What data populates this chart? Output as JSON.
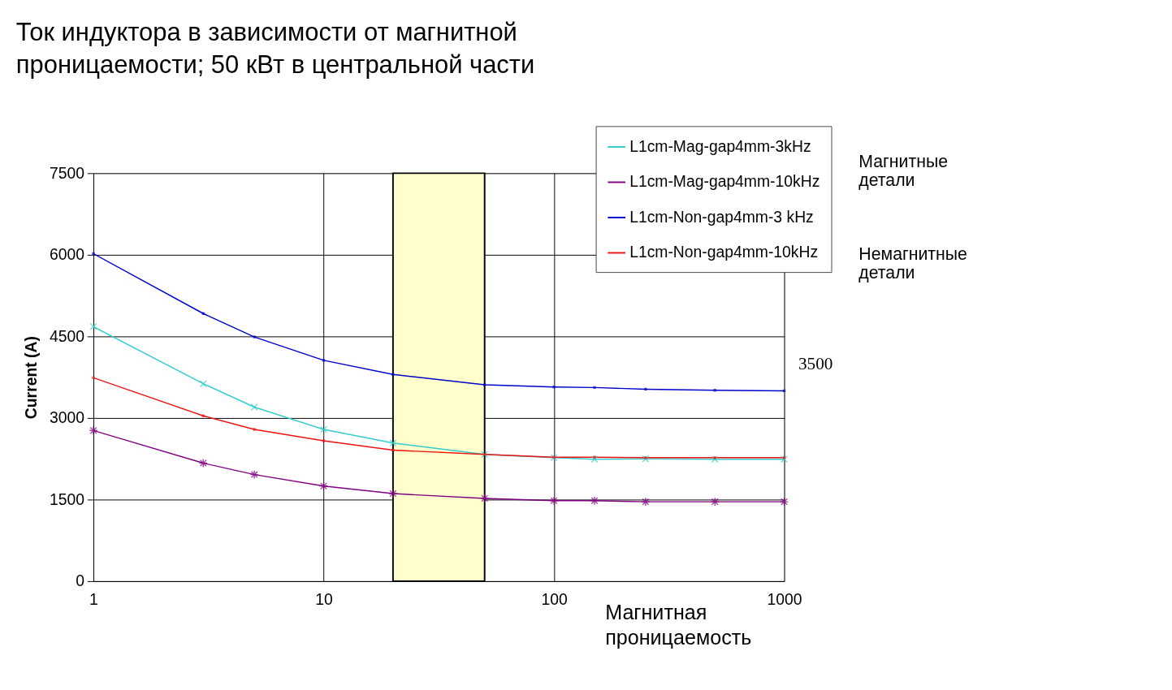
{
  "chart_data": {
    "type": "line",
    "title": "Ток индуктора в зависимости от магнитной проницаемости; 50 кВт в центральной части",
    "xlabel": "Магнитная проницаемость",
    "ylabel": "Current (A)",
    "x": [
      1,
      3,
      5,
      10,
      20,
      50,
      100,
      150,
      250,
      500,
      1000
    ],
    "series": [
      {
        "name": "L1cm-Mag-gap4mm-3kHz",
        "color": "#33cccc",
        "marker": "cross",
        "values": [
          4680,
          3630,
          3200,
          2790,
          2540,
          2330,
          2270,
          2240,
          2250,
          2240,
          2240
        ]
      },
      {
        "name": "L1cm-Mag-gap4mm-10kHz",
        "color": "#800080",
        "marker": "cross",
        "values": [
          2770,
          2170,
          1960,
          1750,
          1610,
          1520,
          1480,
          1480,
          1460,
          1460,
          1460
        ]
      },
      {
        "name": "L1cm-Non-gap4mm-3 kHz",
        "color": "#0000cc",
        "marker": "square",
        "values": [
          6020,
          4920,
          4490,
          4060,
          3800,
          3610,
          3570,
          3560,
          3530,
          3510,
          3500
        ]
      },
      {
        "name": "L1cm-Non-gap4mm-10kHz",
        "color": "#ee1111",
        "marker": "square",
        "values": [
          3740,
          3040,
          2790,
          2580,
          2410,
          2330,
          2280,
          2280,
          2270,
          2270,
          2270
        ]
      }
    ],
    "log": "x",
    "xlim": [
      1,
      1000
    ],
    "xticks": [
      1,
      10,
      100,
      1000
    ],
    "ylim": [
      0,
      7500
    ],
    "yticks": [
      0,
      1500,
      3000,
      4500,
      6000,
      7500
    ],
    "grid": true,
    "legend": "top right",
    "line_style": "solid",
    "bands": [
      {
        "axis": "x",
        "from": 20,
        "to": 50,
        "color": "#ffffcc"
      }
    ],
    "annotations": [
      {
        "text": "3500",
        "x": 1000,
        "y": 3500
      },
      "Магнитные детали",
      "Немагнитные детали"
    ]
  }
}
